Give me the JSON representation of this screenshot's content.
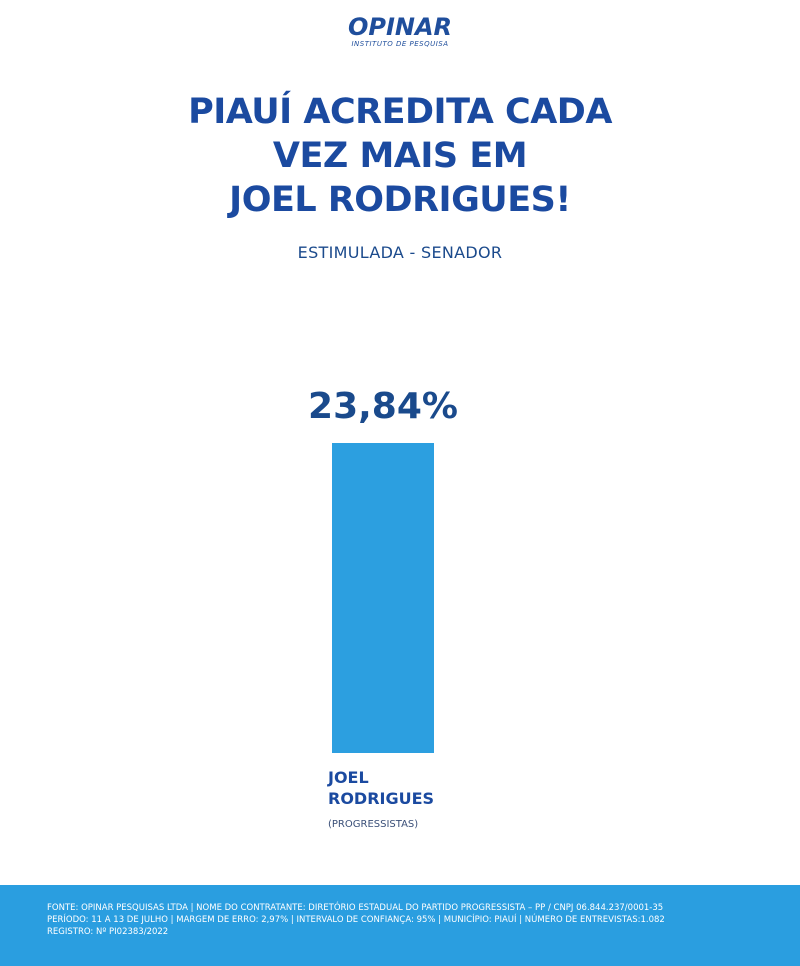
{
  "logo": {
    "name": "OPINAR",
    "tagline": "INSTITUTO DE PESQUISA"
  },
  "headline": {
    "lines": [
      "PIAUÍ ACREDITA CADA",
      "VEZ MAIS EM",
      "JOEL RODRIGUES!"
    ]
  },
  "subtitle": "ESTIMULADA - SENADOR",
  "chart_data": {
    "type": "bar",
    "categories": [
      "JOEL RODRIGUES"
    ],
    "party": "(PROGRESSISTAS)",
    "values": [
      23.84
    ],
    "value_labels": [
      "23,84%"
    ],
    "unit": "%",
    "ylim": [
      0,
      23.84
    ],
    "grid": false,
    "legend": "none",
    "bar_color": "#2c9fe0"
  },
  "colors": {
    "headline": "#1b4aa0",
    "value_label": "#1a4a8c",
    "footer_bg": "#2a9ee0"
  },
  "footer": {
    "line1": "FONTE: OPINAR PESQUISAS LTDA | NOME DO CONTRATANTE: DIRETÓRIO ESTADUAL DO PARTIDO PROGRESSISTA – PP / CNPJ 06.844.237/0001-35",
    "line2": "PERÍODO: 11 A 13 DE JULHO | MARGEM DE ERRO: 2,97% | INTERVALO DE CONFIANÇA: 95% | MUNICÍPIO: PIAUÍ | NÚMERO DE ENTREVISTAS:1.082",
    "line3": "REGISTRO: Nº PI02383/2022"
  }
}
